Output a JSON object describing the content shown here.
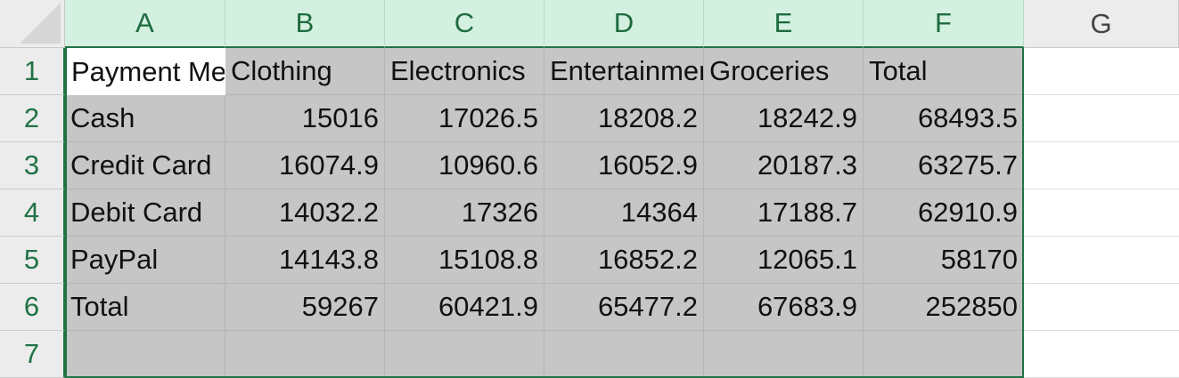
{
  "columns": [
    "A",
    "B",
    "C",
    "D",
    "E",
    "F",
    "G"
  ],
  "rows": [
    "1",
    "2",
    "3",
    "4",
    "5",
    "6",
    "7"
  ],
  "grid": [
    [
      "Payment Method",
      "Clothing",
      "Electronics",
      "Entertainment",
      "Groceries",
      "Total"
    ],
    [
      "Cash",
      "15016",
      "17026.5",
      "18208.2",
      "18242.9",
      "68493.5"
    ],
    [
      "Credit Card",
      "16074.9",
      "10960.6",
      "16052.9",
      "20187.3",
      "63275.7"
    ],
    [
      "Debit Card",
      "14032.2",
      "17326",
      "14364",
      "17188.7",
      "62910.9"
    ],
    [
      "PayPal",
      "14143.8",
      "15108.8",
      "16852.2",
      "12065.1",
      "58170"
    ],
    [
      "Total",
      "59267",
      "60421.9",
      "65477.2",
      "67683.9",
      "252850"
    ],
    [
      "",
      "",
      "",
      "",
      "",
      ""
    ]
  ],
  "colors": {
    "selection_accent": "#217346",
    "selected_header_bg": "#d3f0e0",
    "selected_cell_bg": "#c6c6c6"
  }
}
